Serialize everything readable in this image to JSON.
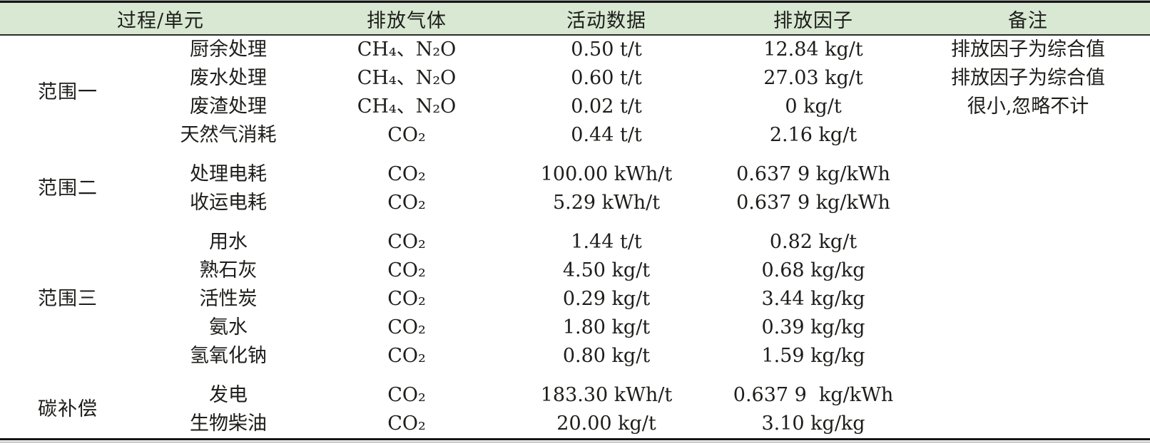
{
  "table": {
    "headers": {
      "process_unit": "过程/单元",
      "gas": "排放气体",
      "activity": "活动数据",
      "factor": "排放因子",
      "remark": "备注"
    },
    "groups": [
      {
        "name": "范围一",
        "rows": [
          {
            "process": "厨余处理",
            "gas": "CH₄、N₂O",
            "activity": "0.50 t/t",
            "factor": "12.84 kg/t",
            "remark": "排放因子为综合值"
          },
          {
            "process": "废水处理",
            "gas": "CH₄、N₂O",
            "activity": "0.60 t/t",
            "factor": "27.03 kg/t",
            "remark": "排放因子为综合值"
          },
          {
            "process": "废渣处理",
            "gas": "CH₄、N₂O",
            "activity": "0.02 t/t",
            "factor": "0 kg/t",
            "remark": "很小,忽略不计"
          },
          {
            "process": "天然气消耗",
            "gas": "CO₂",
            "activity": "0.44 t/t",
            "factor": "2.16 kg/t",
            "remark": ""
          }
        ]
      },
      {
        "name": "范围二",
        "rows": [
          {
            "process": "处理电耗",
            "gas": "CO₂",
            "activity": "100.00 kWh/t",
            "factor": "0.637 9 kg/kWh",
            "remark": ""
          },
          {
            "process": "收运电耗",
            "gas": "CO₂",
            "activity": "5.29 kWh/t",
            "factor": "0.637 9 kg/kWh",
            "remark": ""
          }
        ]
      },
      {
        "name": "范围三",
        "rows": [
          {
            "process": "用水",
            "gas": "CO₂",
            "activity": "1.44 t/t",
            "factor": "0.82 kg/t",
            "remark": ""
          },
          {
            "process": "熟石灰",
            "gas": "CO₂",
            "activity": "4.50 kg/t",
            "factor": "0.68 kg/kg",
            "remark": ""
          },
          {
            "process": "活性炭",
            "gas": "CO₂",
            "activity": "0.29 kg/t",
            "factor": "3.44 kg/kg",
            "remark": ""
          },
          {
            "process": "氨水",
            "gas": "CO₂",
            "activity": "1.80 kg/t",
            "factor": "0.39 kg/kg",
            "remark": ""
          },
          {
            "process": "氢氧化钠",
            "gas": "CO₂",
            "activity": "0.80 kg/t",
            "factor": "1.59 kg/kg",
            "remark": ""
          }
        ]
      },
      {
        "name": "碳补偿",
        "rows": [
          {
            "process": "发电",
            "gas": "CO₂",
            "activity": "183.30 kWh/t",
            "factor": "0.637 9  kg/kWh",
            "remark": ""
          },
          {
            "process": "生物柴油",
            "gas": "CO₂",
            "activity": "20.00 kg/t",
            "factor": "3.10 kg/kg",
            "remark": ""
          }
        ]
      }
    ],
    "colors": {
      "header_bg": "#d8e8d2",
      "text": "#1d1d1b",
      "rule": "#161616"
    }
  }
}
